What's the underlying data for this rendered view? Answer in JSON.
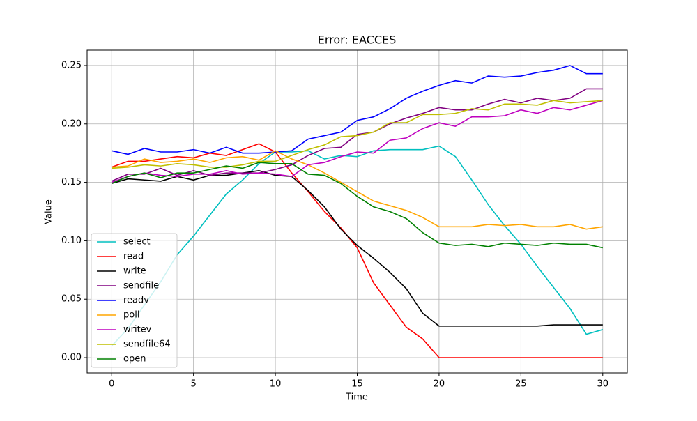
{
  "chart_data": {
    "type": "line",
    "title": "Error: EACCES",
    "x_label": "Time",
    "y_label": "Value",
    "x": [
      0,
      1,
      2,
      3,
      4,
      5,
      6,
      7,
      8,
      9,
      10,
      11,
      12,
      13,
      14,
      15,
      16,
      17,
      18,
      19,
      20,
      21,
      22,
      23,
      24,
      25,
      26,
      27,
      28,
      29,
      30
    ],
    "series": [
      {
        "name": "select",
        "color": "#00bfbf",
        "values": [
          0.01,
          0.025,
          0.045,
          0.065,
          0.088,
          0.104,
          0.122,
          0.14,
          0.152,
          0.166,
          0.176,
          0.176,
          0.177,
          0.17,
          0.173,
          0.172,
          0.177,
          0.178,
          0.178,
          0.178,
          0.181,
          0.172,
          0.152,
          0.131,
          0.113,
          0.097,
          0.078,
          0.06,
          0.042,
          0.02,
          0.024
        ]
      },
      {
        "name": "read",
        "color": "#ff0000",
        "values": [
          0.163,
          0.168,
          0.168,
          0.17,
          0.172,
          0.171,
          0.175,
          0.173,
          0.178,
          0.183,
          0.176,
          0.158,
          0.142,
          0.125,
          0.111,
          0.094,
          0.064,
          0.045,
          0.026,
          0.016,
          0,
          0,
          0,
          0,
          0,
          0,
          0,
          0,
          0,
          0,
          0
        ]
      },
      {
        "name": "write",
        "color": "#000000",
        "values": [
          0.149,
          0.153,
          0.152,
          0.151,
          0.155,
          0.152,
          0.156,
          0.156,
          0.158,
          0.16,
          0.156,
          0.155,
          0.143,
          0.129,
          0.11,
          0.096,
          0.085,
          0.073,
          0.059,
          0.038,
          0.027,
          0.027,
          0.027,
          0.027,
          0.027,
          0.027,
          0.027,
          0.028,
          0.028,
          0.028,
          0.028
        ]
      },
      {
        "name": "sendfile",
        "color": "#800080",
        "values": [
          0.151,
          0.157,
          0.157,
          0.162,
          0.156,
          0.16,
          0.156,
          0.158,
          0.158,
          0.158,
          0.161,
          0.165,
          0.173,
          0.179,
          0.18,
          0.191,
          0.193,
          0.2,
          0.205,
          0.209,
          0.214,
          0.212,
          0.212,
          0.217,
          0.221,
          0.218,
          0.222,
          0.22,
          0.222,
          0.23,
          0.23
        ]
      },
      {
        "name": "readv",
        "color": "#0000ff",
        "values": [
          0.177,
          0.174,
          0.179,
          0.176,
          0.176,
          0.178,
          0.175,
          0.18,
          0.175,
          0.175,
          0.176,
          0.177,
          0.187,
          0.19,
          0.193,
          0.203,
          0.206,
          0.213,
          0.222,
          0.228,
          0.233,
          0.237,
          0.235,
          0.241,
          0.24,
          0.241,
          0.244,
          0.246,
          0.25,
          0.243,
          0.243
        ]
      },
      {
        "name": "poll",
        "color": "#ffa500",
        "values": [
          0.163,
          0.164,
          0.17,
          0.167,
          0.168,
          0.17,
          0.167,
          0.171,
          0.172,
          0.169,
          0.177,
          0.17,
          0.165,
          0.158,
          0.15,
          0.142,
          0.134,
          0.13,
          0.126,
          0.12,
          0.112,
          0.112,
          0.112,
          0.114,
          0.113,
          0.114,
          0.112,
          0.112,
          0.114,
          0.11,
          0.112
        ]
      },
      {
        "name": "writev",
        "color": "#bf00bf",
        "values": [
          0.15,
          0.155,
          0.158,
          0.156,
          0.155,
          0.157,
          0.157,
          0.16,
          0.157,
          0.158,
          0.157,
          0.155,
          0.165,
          0.167,
          0.172,
          0.176,
          0.175,
          0.186,
          0.188,
          0.196,
          0.201,
          0.198,
          0.206,
          0.206,
          0.207,
          0.212,
          0.209,
          0.214,
          0.212,
          0.216,
          0.22
        ]
      },
      {
        "name": "sendfile64",
        "color": "#bfbf00",
        "values": [
          0.162,
          0.163,
          0.165,
          0.164,
          0.166,
          0.165,
          0.163,
          0.163,
          0.165,
          0.168,
          0.168,
          0.173,
          0.178,
          0.182,
          0.189,
          0.19,
          0.193,
          0.201,
          0.201,
          0.208,
          0.208,
          0.209,
          0.213,
          0.212,
          0.217,
          0.217,
          0.216,
          0.22,
          0.218,
          0.219,
          0.22
        ]
      },
      {
        "name": "open",
        "color": "#008000",
        "values": [
          0.149,
          0.155,
          0.158,
          0.154,
          0.158,
          0.158,
          0.161,
          0.164,
          0.162,
          0.167,
          0.166,
          0.166,
          0.157,
          0.156,
          0.149,
          0.138,
          0.129,
          0.125,
          0.119,
          0.107,
          0.098,
          0.096,
          0.097,
          0.095,
          0.098,
          0.097,
          0.096,
          0.098,
          0.097,
          0.097,
          0.094
        ]
      }
    ],
    "xlim": [
      -1.5,
      31.5
    ],
    "xticks": [
      0,
      5,
      10,
      15,
      20,
      25,
      30
    ],
    "ylim": [
      -0.0131,
      0.2631
    ],
    "yticks": [
      {
        "value": 0,
        "label": "0.00"
      },
      0.05,
      {
        "value": 0.1,
        "label": "0.10"
      },
      0.15,
      {
        "value": 0.2,
        "label": "0.20"
      },
      0.25
    ],
    "grid": true,
    "legend": "lower left"
  }
}
